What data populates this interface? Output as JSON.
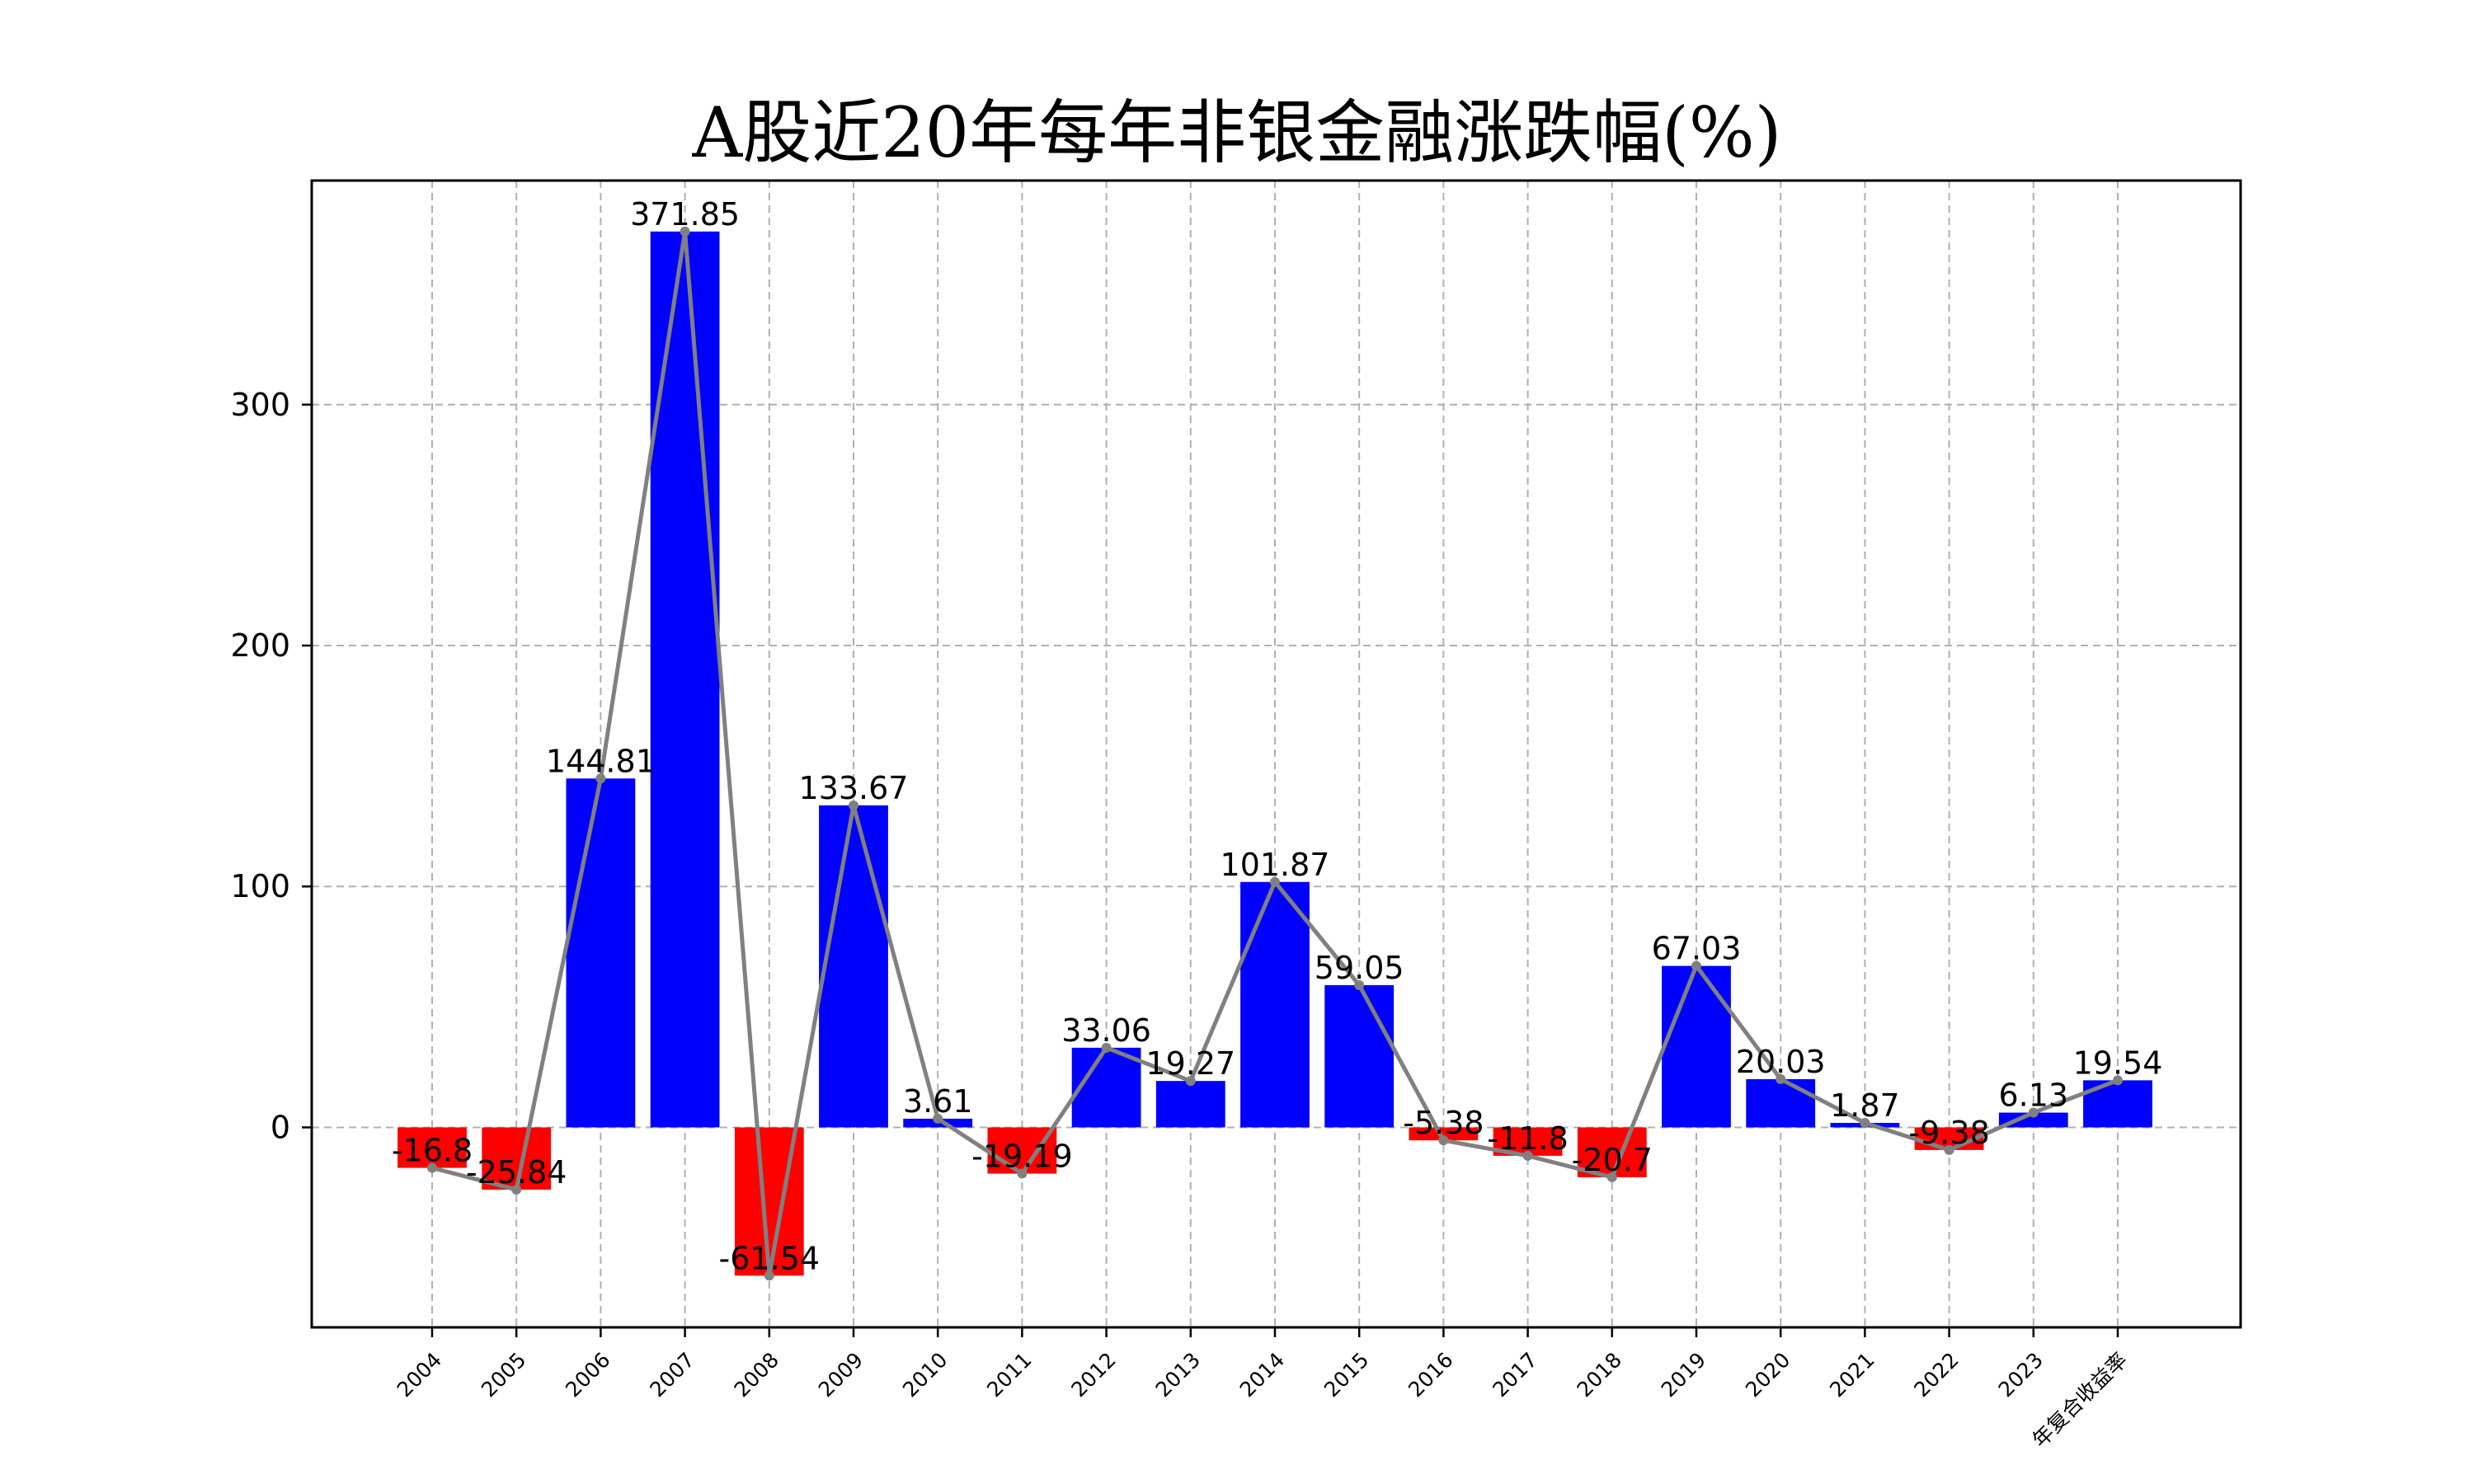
{
  "chart_data": {
    "type": "bar",
    "title": "A股近20年每年非银金融涨跌幅(%)",
    "xlabel": "",
    "ylabel": "",
    "categories": [
      "2004",
      "2005",
      "2006",
      "2007",
      "2008",
      "2009",
      "2010",
      "2011",
      "2012",
      "2013",
      "2014",
      "2015",
      "2016",
      "2017",
      "2018",
      "2019",
      "2020",
      "2021",
      "2022",
      "2023",
      "年复合收益率"
    ],
    "values": [
      -16.8,
      -25.84,
      144.81,
      371.85,
      -61.54,
      133.67,
      3.61,
      -19.19,
      33.06,
      19.27,
      101.87,
      59.05,
      -5.38,
      -11.8,
      -20.7,
      67.03,
      20.03,
      1.87,
      -9.38,
      6.13,
      19.54
    ],
    "labels": [
      "-16.8",
      "-25.84",
      "144.81",
      "371.85",
      "-61.54",
      "133.67",
      "3.61",
      "-19.19",
      "33.06",
      "19.27",
      "101.87",
      "59.05",
      "-5.38",
      "-11.8",
      "-20.7",
      "67.03",
      "20.03",
      "1.87",
      "-9.38",
      "6.13",
      "19.54"
    ],
    "yticks": [
      0,
      100,
      200,
      300
    ],
    "ylim": [
      -83,
      393
    ],
    "grid": true,
    "overlay_line": true,
    "colors": {
      "positive": "#0000ff",
      "negative": "#ff0000",
      "line": "#808080",
      "grid": "#b0b0b0"
    }
  }
}
